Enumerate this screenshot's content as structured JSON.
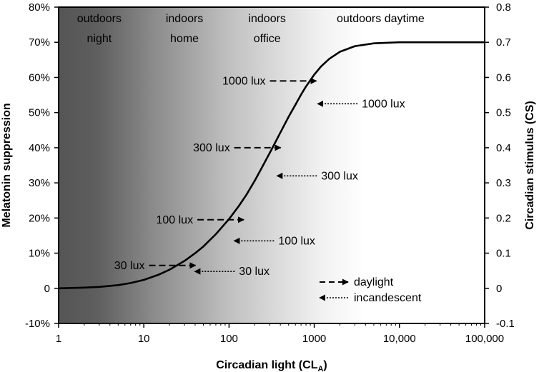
{
  "chart_data": {
    "type": "line",
    "title": "",
    "xlabel": "Circadian light (CL",
    "xlabel_subscript": "A",
    "xlabel_suffix": ")",
    "ylabel_left": "Melatonin suppression",
    "ylabel_right": "Circadian stimulus (CS)",
    "x_scale": "log",
    "xlim": [
      1,
      100000
    ],
    "x_ticks": [
      1,
      10,
      100,
      1000,
      10000,
      100000
    ],
    "x_tick_labels": [
      "1",
      "10",
      "100",
      "1000",
      "10,000",
      "100,000"
    ],
    "ylim_left": [
      -10,
      80
    ],
    "y_left_ticks": [
      -10,
      0,
      10,
      20,
      30,
      40,
      50,
      60,
      70,
      80
    ],
    "y_left_tick_labels": [
      "-10%",
      "0",
      "10%",
      "20%",
      "30%",
      "40%",
      "50%",
      "60%",
      "70%",
      "80%"
    ],
    "ylim_right": [
      -0.1,
      0.8
    ],
    "y_right_ticks": [
      -0.1,
      0,
      0.1,
      0.2,
      0.3,
      0.4,
      0.5,
      0.6,
      0.7,
      0.8
    ],
    "y_right_tick_labels": [
      "-0.1",
      "0",
      "0.1",
      "0.2",
      "0.3",
      "0.4",
      "0.5",
      "0.6",
      "0.7",
      "0.8"
    ],
    "grid": false,
    "background_gradient": [
      "#555555",
      "#ffffff"
    ],
    "regions": [
      {
        "label_line1": "outdoors",
        "label_line2": "night",
        "x_center": 3
      },
      {
        "label_line1": "indoors",
        "label_line2": "home",
        "x_center": 30
      },
      {
        "label_line1": "indoors",
        "label_line2": "office",
        "x_center": 280
      },
      {
        "label_line1": "outdoors daytime",
        "label_line2": "",
        "x_center": 6000
      }
    ],
    "series": [
      {
        "x": [
          1,
          2,
          3,
          5,
          7,
          10,
          15,
          20,
          30,
          40,
          50,
          70,
          100,
          130,
          160,
          200,
          250,
          300,
          350,
          400,
          500,
          600,
          700,
          800,
          1000,
          1200,
          1500,
          2000,
          3000,
          5000,
          10000,
          20000,
          50000,
          100000
        ],
        "y": [
          0,
          0.2,
          0.4,
          0.9,
          1.5,
          2.4,
          3.9,
          5.3,
          7.8,
          10.0,
          11.9,
          15.4,
          19.7,
          23.4,
          26.6,
          30.6,
          34.9,
          38.5,
          41.6,
          44.3,
          48.8,
          52.2,
          55.1,
          57.4,
          60.8,
          63.1,
          65.3,
          67.3,
          68.9,
          69.7,
          70.0,
          70.0,
          70.0,
          70.0
        ],
        "color": "#000000"
      }
    ],
    "annotations": [
      {
        "label": "1000 lux",
        "source": "daylight",
        "label_side": "left",
        "x": 1100,
        "y": 59
      },
      {
        "label": "1000 lux",
        "source": "incandescent",
        "label_side": "right",
        "x": 1050,
        "y": 52.5
      },
      {
        "label": "300 lux",
        "source": "daylight",
        "label_side": "left",
        "x": 420,
        "y": 40
      },
      {
        "label": "300 lux",
        "source": "incandescent",
        "label_side": "right",
        "x": 350,
        "y": 32
      },
      {
        "label": "100 lux",
        "source": "daylight",
        "label_side": "left",
        "x": 155,
        "y": 19.5
      },
      {
        "label": "100 lux",
        "source": "incandescent",
        "label_side": "right",
        "x": 110,
        "y": 13.5
      },
      {
        "label": "30 lux",
        "source": "daylight",
        "label_side": "left",
        "x": 42,
        "y": 6.5
      },
      {
        "label": "30 lux",
        "source": "incandescent",
        "label_side": "right",
        "x": 38,
        "y": 4.8
      }
    ],
    "legend": {
      "placement": "bottom-right",
      "items": [
        {
          "label": "daylight",
          "style": "dashed"
        },
        {
          "label": "incandescent",
          "style": "dotted"
        }
      ]
    }
  }
}
